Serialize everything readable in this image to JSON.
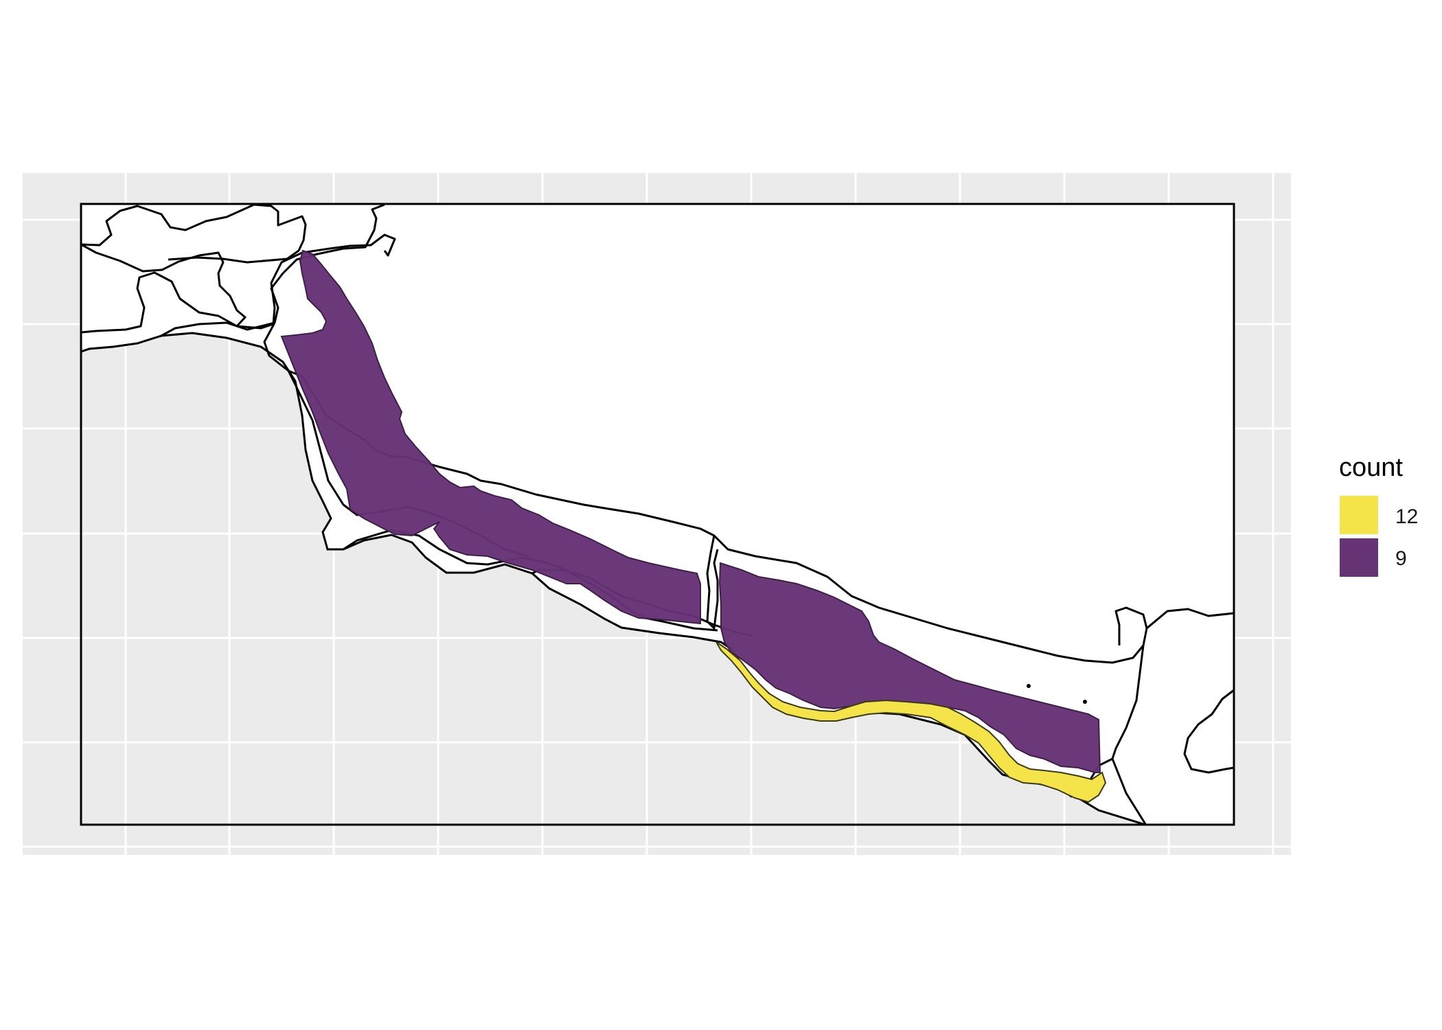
{
  "map": {
    "legend": {
      "title": "count",
      "items": [
        {
          "label": "12",
          "color": "#F4E44A"
        },
        {
          "label": "9",
          "color": "#663375"
        }
      ]
    },
    "colors": {
      "panel_background": "#EBEBEB",
      "grid_line": "#FFFFFF",
      "land_fill": "#FFFFFF",
      "outline": "#000000"
    },
    "regions": [
      {
        "name": "zone-count-9",
        "count": 9
      },
      {
        "name": "zone-count-12",
        "count": 12
      }
    ]
  }
}
